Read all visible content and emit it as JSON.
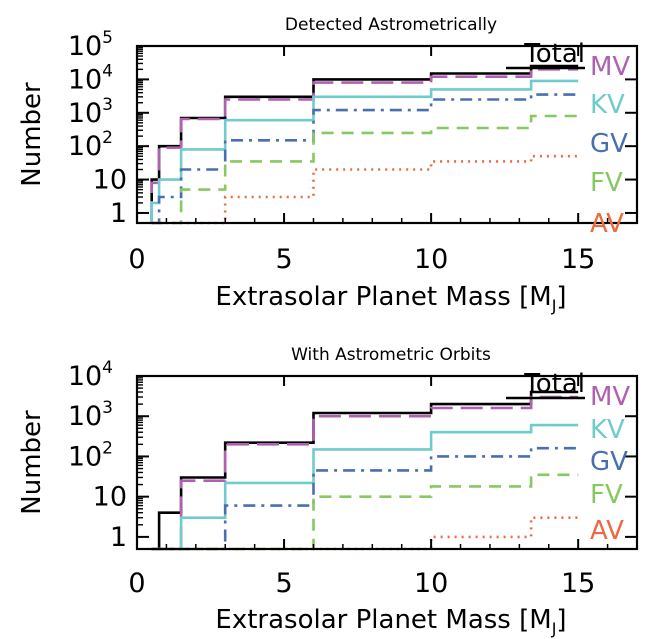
{
  "chart_data": [
    {
      "type": "line",
      "title": "Detected Astrometrically",
      "xlabel": "Extrasolar Planet Mass",
      "xlabel_unit": "M",
      "xlabel_unit_sub": "J",
      "ylabel": "Number",
      "xlim": [
        0,
        17
      ],
      "ylim": [
        0.5,
        100000
      ],
      "yscale": "log",
      "grid": false,
      "legend_position": "right",
      "x_ticks": [
        0,
        5,
        10,
        15
      ],
      "x_tick_labels": [
        "0",
        "5",
        "10",
        "15"
      ],
      "y_ticks": [
        1,
        10,
        100,
        1000,
        10000,
        100000
      ],
      "y_tick_labels": [
        "1",
        "10",
        "10^2",
        "10^3",
        "10^4",
        "10^5"
      ],
      "bin_edges": [
        0.5,
        0.75,
        1.5,
        3,
        6,
        10,
        13.4,
        15
      ],
      "series": [
        {
          "name": "Total",
          "color": "#000000",
          "dash": "solid",
          "values": [
            10,
            100,
            700,
            3000,
            10000,
            15000,
            25000
          ]
        },
        {
          "name": "MV",
          "color": "#b060b0",
          "dash": "longdash",
          "values": [
            8,
            90,
            650,
            2500,
            8000,
            12000,
            20000
          ]
        },
        {
          "name": "KV",
          "color": "#70cccc",
          "dash": "solid",
          "values": [
            2,
            10,
            80,
            600,
            3000,
            5000,
            9000
          ]
        },
        {
          "name": "GV",
          "color": "#4a6fb0",
          "dash": "dashdot",
          "values": [
            0.5,
            3,
            20,
            150,
            1200,
            2500,
            3500
          ]
        },
        {
          "name": "FV",
          "color": "#88c860",
          "dash": "dash",
          "values": [
            0.5,
            0.5,
            5,
            35,
            250,
            350,
            800
          ]
        },
        {
          "name": "AV",
          "color": "#ec6a40",
          "dash": "dotted",
          "values": [
            0.5,
            0.5,
            0.5,
            3,
            20,
            35,
            50
          ]
        }
      ]
    },
    {
      "type": "line",
      "title": "With Astrometric Orbits",
      "xlabel": "Extrasolar Planet Mass",
      "xlabel_unit": "M",
      "xlabel_unit_sub": "J",
      "ylabel": "Number",
      "xlim": [
        0,
        17
      ],
      "ylim": [
        0.5,
        10000
      ],
      "yscale": "log",
      "grid": false,
      "legend_position": "right",
      "x_ticks": [
        0,
        5,
        10,
        15
      ],
      "x_tick_labels": [
        "0",
        "5",
        "10",
        "15"
      ],
      "y_ticks": [
        1,
        10,
        100,
        1000,
        10000
      ],
      "y_tick_labels": [
        "1",
        "10",
        "10^2",
        "10^3",
        "10^4"
      ],
      "bin_edges": [
        0.5,
        0.75,
        1.5,
        3,
        6,
        10,
        13.4,
        15
      ],
      "series": [
        {
          "name": "Total",
          "color": "#000000",
          "dash": "solid",
          "values": [
            0.5,
            4,
            30,
            220,
            1200,
            2000,
            4000
          ]
        },
        {
          "name": "MV",
          "color": "#b060b0",
          "dash": "longdash",
          "values": [
            0.5,
            0.5,
            25,
            200,
            1000,
            1600,
            3000
          ]
        },
        {
          "name": "KV",
          "color": "#70cccc",
          "dash": "solid",
          "values": [
            0.5,
            0.5,
            3,
            22,
            150,
            400,
            600
          ]
        },
        {
          "name": "GV",
          "color": "#4a6fb0",
          "dash": "dashdot",
          "values": [
            0.5,
            0.5,
            0.5,
            6,
            45,
            100,
            160
          ]
        },
        {
          "name": "FV",
          "color": "#88c860",
          "dash": "dash",
          "values": [
            0.5,
            0.5,
            0.5,
            0.5,
            10,
            18,
            35
          ]
        },
        {
          "name": "AV",
          "color": "#ec6a40",
          "dash": "dotted",
          "values": [
            0.5,
            0.5,
            0.5,
            0.5,
            0.5,
            1,
            3
          ]
        }
      ]
    }
  ]
}
